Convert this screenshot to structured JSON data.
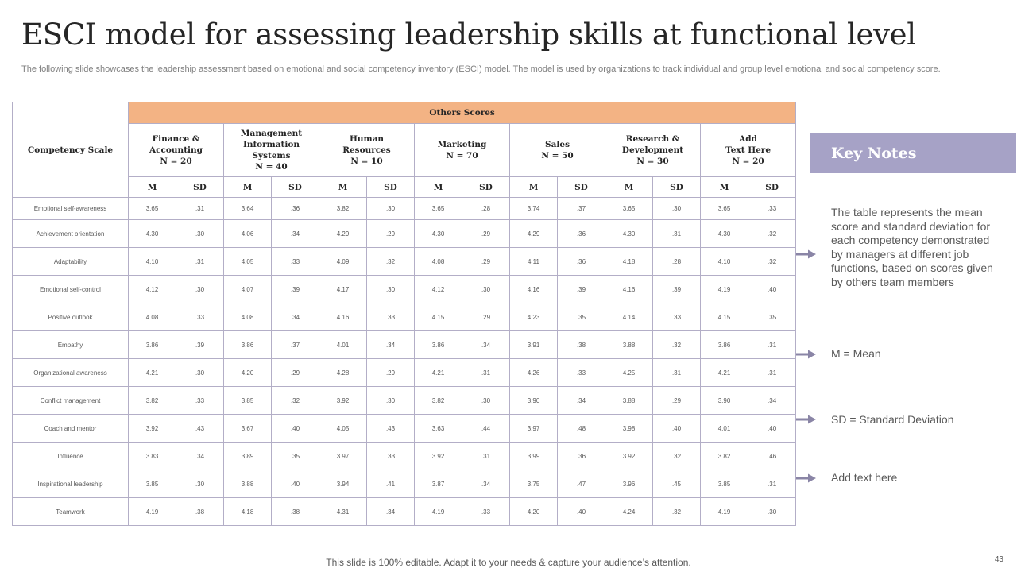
{
  "title": "ESCI model for assessing leadership skills at functional level",
  "subtitle": "The following slide showcases the leadership assessment based on emotional and social competency inventory (ESCI) model. The model is used by organizations to track individual and group level emotional and social competency score.",
  "table": {
    "corner_header": "Competency Scale",
    "group_header": "Others Scores",
    "departments": [
      {
        "line1": "Finance &",
        "line2": "Accounting",
        "line3": "N = 20",
        "line4": ""
      },
      {
        "line1": "Management",
        "line2": "Information",
        "line3": "Systems",
        "line4": "N = 40"
      },
      {
        "line1": "Human",
        "line2": "Resources",
        "line3": "N = 10",
        "line4": ""
      },
      {
        "line1": "Marketing",
        "line2": "N = 70",
        "line3": "",
        "line4": ""
      },
      {
        "line1": "Sales",
        "line2": "N = 50",
        "line3": "",
        "line4": ""
      },
      {
        "line1": "Research &",
        "line2": "Development",
        "line3": "N = 30",
        "line4": ""
      },
      {
        "line1": "Add",
        "line2": "Text Here",
        "line3": "N = 20",
        "line4": ""
      }
    ],
    "m_label": "M",
    "sd_label": "SD",
    "rows": [
      {
        "name": "Emotional self-awareness",
        "values": [
          "3.65",
          ".31",
          "3.64",
          ".36",
          "3.82",
          ".30",
          "3.65",
          ".28",
          "3.74",
          ".37",
          "3.65",
          ".30",
          "3.65",
          ".33"
        ]
      },
      {
        "name": "Achievement orientation",
        "values": [
          "4.30",
          ".30",
          "4.06",
          ".34",
          "4.29",
          ".29",
          "4.30",
          ".29",
          "4.29",
          ".36",
          "4.30",
          ".31",
          "4.30",
          ".32"
        ]
      },
      {
        "name": "Adaptability",
        "values": [
          "4.10",
          ".31",
          "4.05",
          ".33",
          "4.09",
          ".32",
          "4.08",
          ".29",
          "4.11",
          ".36",
          "4.18",
          ".28",
          "4.10",
          ".32"
        ]
      },
      {
        "name": "Emotional self-control",
        "values": [
          "4.12",
          ".30",
          "4.07",
          ".39",
          "4.17",
          ".30",
          "4.12",
          ".30",
          "4.16",
          ".39",
          "4.16",
          ".39",
          "4.19",
          ".40"
        ]
      },
      {
        "name": "Positive outlook",
        "values": [
          "4.08",
          ".33",
          "4.08",
          ".34",
          "4.16",
          ".33",
          "4.15",
          ".29",
          "4.23",
          ".35",
          "4.14",
          ".33",
          "4.15",
          ".35"
        ]
      },
      {
        "name": "Empathy",
        "values": [
          "3.86",
          ".39",
          "3.86",
          ".37",
          "4.01",
          ".34",
          "3.86",
          ".34",
          "3.91",
          ".38",
          "3.88",
          ".32",
          "3.86",
          ".31"
        ]
      },
      {
        "name": "Organizational awareness",
        "values": [
          "4.21",
          ".30",
          "4.20",
          ".29",
          "4.28",
          ".29",
          "4.21",
          ".31",
          "4.26",
          ".33",
          "4.25",
          ".31",
          "4.21",
          ".31"
        ]
      },
      {
        "name": "Conflict management",
        "values": [
          "3.82",
          ".33",
          "3.85",
          ".32",
          "3.92",
          ".30",
          "3.82",
          ".30",
          "3.90",
          ".34",
          "3.88",
          ".29",
          "3.90",
          ".34"
        ]
      },
      {
        "name": "Coach and mentor",
        "values": [
          "3.92",
          ".43",
          "3.67",
          ".40",
          "4.05",
          ".43",
          "3.63",
          ".44",
          "3.97",
          ".48",
          "3.98",
          ".40",
          "4.01",
          ".40"
        ]
      },
      {
        "name": "Influence",
        "values": [
          "3.83",
          ".34",
          "3.89",
          ".35",
          "3.97",
          ".33",
          "3.92",
          ".31",
          "3.99",
          ".36",
          "3.92",
          ".32",
          "3.82",
          ".46"
        ]
      },
      {
        "name": "Inspirational leadership",
        "values": [
          "3.85",
          ".30",
          "3.88",
          ".40",
          "3.94",
          ".41",
          "3.87",
          ".34",
          "3.75",
          ".47",
          "3.96",
          ".45",
          "3.85",
          ".31"
        ]
      },
      {
        "name": "Teamwork",
        "values": [
          "4.19",
          ".38",
          "4.18",
          ".38",
          "4.31",
          ".34",
          "4.19",
          ".33",
          "4.20",
          ".40",
          "4.24",
          ".32",
          "4.19",
          ".30"
        ]
      }
    ]
  },
  "key_notes": {
    "heading": "Key Notes",
    "notes": [
      "The table represents the mean score and standard deviation for each competency demonstrated by managers at different job functions, based on scores given by others team members",
      "M = Mean",
      "SD = Standard Deviation",
      "Add text here"
    ]
  },
  "colors": {
    "header_orange": "#f3b384",
    "key_notes_purple": "#a6a2c6",
    "arrow_gray": "#8a85a6",
    "grid_line": "#b3aec7"
  },
  "icons": {
    "note_arrow": "right-arrow-icon"
  },
  "footer": "This slide is 100% editable. Adapt it to your needs & capture your audience’s attention.",
  "page_number": "43"
}
